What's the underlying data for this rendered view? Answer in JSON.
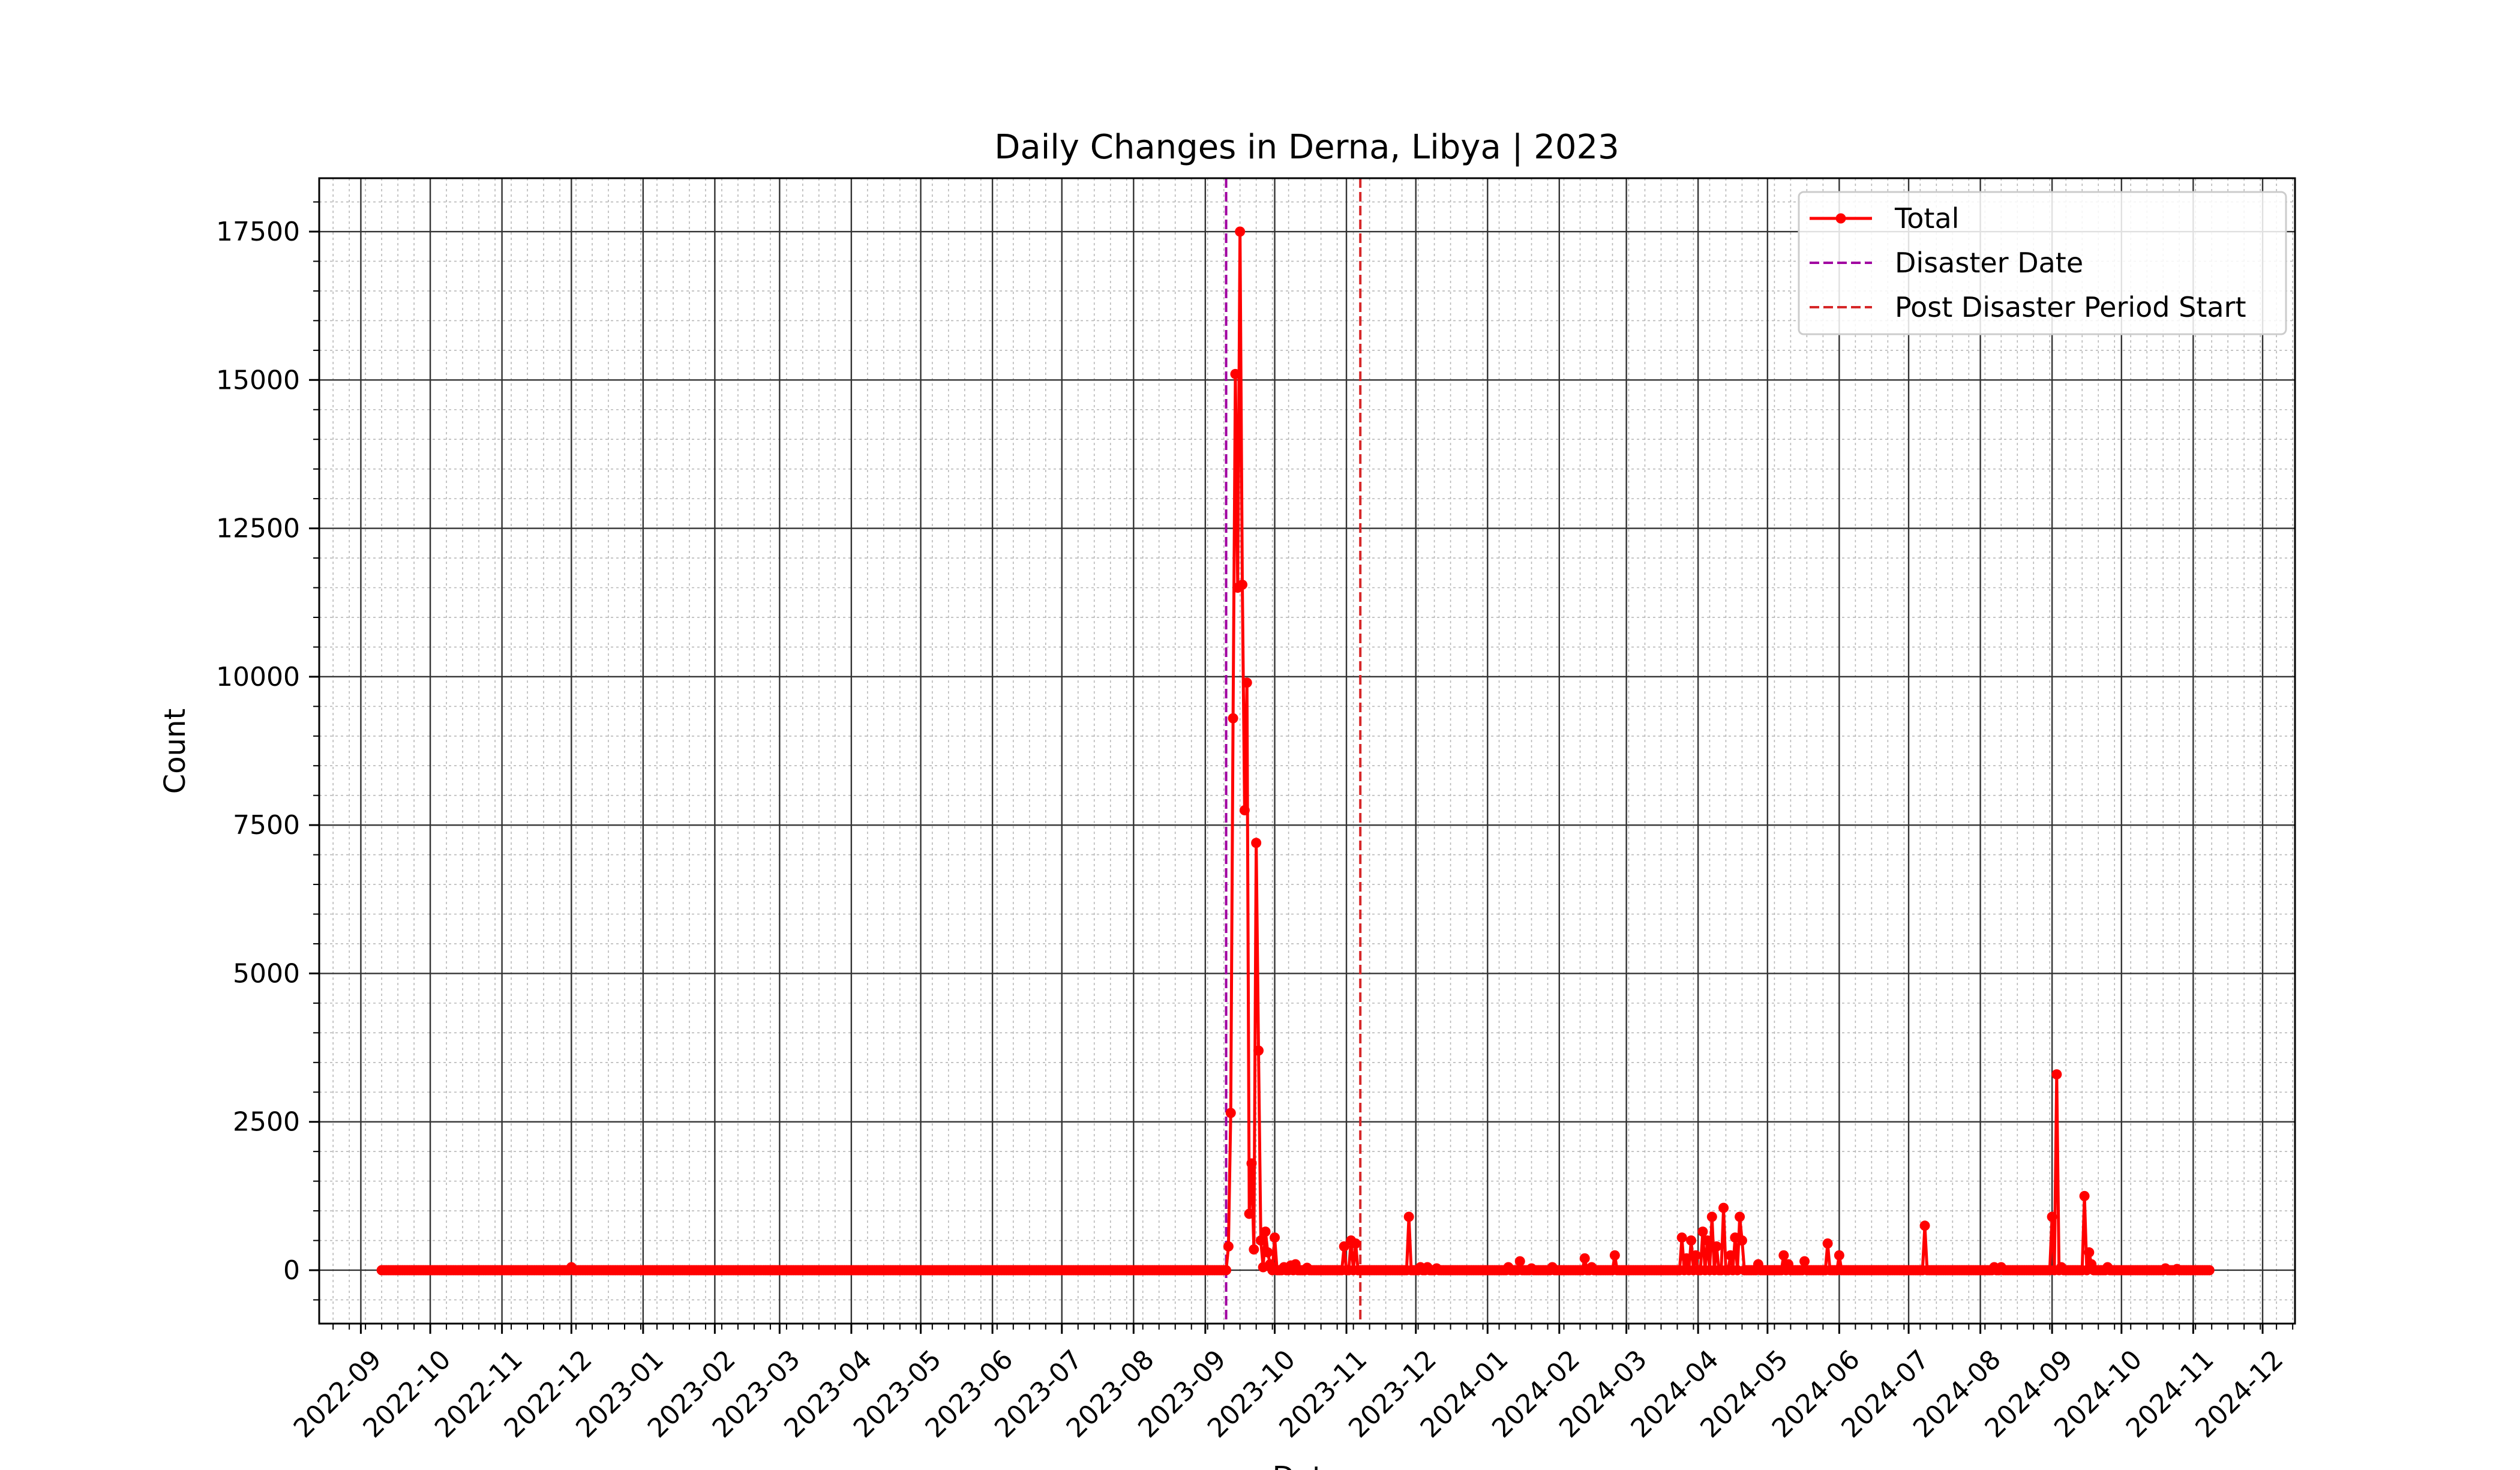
{
  "chart_data": {
    "type": "line",
    "title": "Daily Changes in Derna, Libya | 2023",
    "xlabel": "Date",
    "ylabel": "Count",
    "x_type": "date",
    "xlim": [
      "2022-08-14",
      "2024-12-15"
    ],
    "ylim": [
      -900,
      18400
    ],
    "yticks": [
      0,
      2500,
      5000,
      7500,
      10000,
      12500,
      15000,
      17500
    ],
    "xticks": [
      "2022-09-01",
      "2022-10-01",
      "2022-11-01",
      "2022-12-01",
      "2023-01-01",
      "2023-02-01",
      "2023-03-01",
      "2023-04-01",
      "2023-05-01",
      "2023-06-01",
      "2023-07-01",
      "2023-08-01",
      "2023-09-01",
      "2023-10-01",
      "2023-11-01",
      "2023-12-01",
      "2024-01-01",
      "2024-02-01",
      "2024-03-01",
      "2024-04-01",
      "2024-05-01",
      "2024-06-01",
      "2024-07-01",
      "2024-08-01",
      "2024-09-01",
      "2024-10-01",
      "2024-11-01",
      "2024-12-01"
    ],
    "xtick_labels": [
      "2022-09",
      "2022-10",
      "2022-11",
      "2022-12",
      "2023-01",
      "2023-02",
      "2023-03",
      "2023-04",
      "2023-05",
      "2023-06",
      "2023-07",
      "2023-08",
      "2023-09",
      "2023-10",
      "2023-11",
      "2023-12",
      "2024-01",
      "2024-02",
      "2024-03",
      "2024-04",
      "2024-05",
      "2024-06",
      "2024-07",
      "2024-08",
      "2024-09",
      "2024-10",
      "2024-11",
      "2024-12"
    ],
    "grid": true,
    "legend_position": "top-right",
    "series": [
      {
        "name": "Total",
        "color": "#ff0000",
        "start": "2022-09-10",
        "end": "2024-11-08",
        "default_value": 0,
        "points": [
          [
            "2022-12-01",
            50
          ],
          [
            "2023-09-11",
            400
          ],
          [
            "2023-09-12",
            2650
          ],
          [
            "2023-09-13",
            9300
          ],
          [
            "2023-09-14",
            15100
          ],
          [
            "2023-09-15",
            11500
          ],
          [
            "2023-09-16",
            17500
          ],
          [
            "2023-09-17",
            11550
          ],
          [
            "2023-09-18",
            7750
          ],
          [
            "2023-09-19",
            9900
          ],
          [
            "2023-09-20",
            950
          ],
          [
            "2023-09-21",
            1800
          ],
          [
            "2023-09-22",
            350
          ],
          [
            "2023-09-23",
            7200
          ],
          [
            "2023-09-24",
            3700
          ],
          [
            "2023-09-25",
            500
          ],
          [
            "2023-09-26",
            50
          ],
          [
            "2023-09-27",
            650
          ],
          [
            "2023-09-28",
            300
          ],
          [
            "2023-09-29",
            100
          ],
          [
            "2023-10-01",
            550
          ],
          [
            "2023-10-05",
            50
          ],
          [
            "2023-10-08",
            80
          ],
          [
            "2023-10-10",
            100
          ],
          [
            "2023-10-15",
            40
          ],
          [
            "2023-10-31",
            400
          ],
          [
            "2023-11-03",
            500
          ],
          [
            "2023-11-05",
            450
          ],
          [
            "2023-11-28",
            900
          ],
          [
            "2023-12-03",
            50
          ],
          [
            "2023-12-06",
            50
          ],
          [
            "2023-12-10",
            30
          ],
          [
            "2024-01-10",
            50
          ],
          [
            "2024-01-15",
            150
          ],
          [
            "2024-01-20",
            30
          ],
          [
            "2024-01-29",
            50
          ],
          [
            "2024-02-12",
            200
          ],
          [
            "2024-02-15",
            50
          ],
          [
            "2024-02-25",
            250
          ],
          [
            "2024-03-25",
            550
          ],
          [
            "2024-03-27",
            200
          ],
          [
            "2024-03-29",
            500
          ],
          [
            "2024-03-31",
            250
          ],
          [
            "2024-04-03",
            650
          ],
          [
            "2024-04-05",
            500
          ],
          [
            "2024-04-07",
            900
          ],
          [
            "2024-04-09",
            400
          ],
          [
            "2024-04-12",
            1050
          ],
          [
            "2024-04-15",
            250
          ],
          [
            "2024-04-17",
            550
          ],
          [
            "2024-04-19",
            900
          ],
          [
            "2024-04-20",
            500
          ],
          [
            "2024-04-27",
            100
          ],
          [
            "2024-05-08",
            250
          ],
          [
            "2024-05-10",
            100
          ],
          [
            "2024-05-17",
            150
          ],
          [
            "2024-05-27",
            450
          ],
          [
            "2024-06-01",
            250
          ],
          [
            "2024-07-08",
            750
          ],
          [
            "2024-08-07",
            50
          ],
          [
            "2024-08-10",
            50
          ],
          [
            "2024-09-01",
            900
          ],
          [
            "2024-09-03",
            3300
          ],
          [
            "2024-09-05",
            50
          ],
          [
            "2024-09-15",
            1250
          ],
          [
            "2024-09-17",
            300
          ],
          [
            "2024-09-18",
            100
          ],
          [
            "2024-09-25",
            50
          ],
          [
            "2024-10-20",
            30
          ],
          [
            "2024-10-25",
            20
          ]
        ]
      }
    ],
    "vlines": [
      {
        "name": "Disaster Date",
        "x": "2023-09-10",
        "color": "#a000a0"
      },
      {
        "name": "Post Disaster Period Start",
        "x": "2023-11-07",
        "color": "#d62728"
      }
    ]
  }
}
